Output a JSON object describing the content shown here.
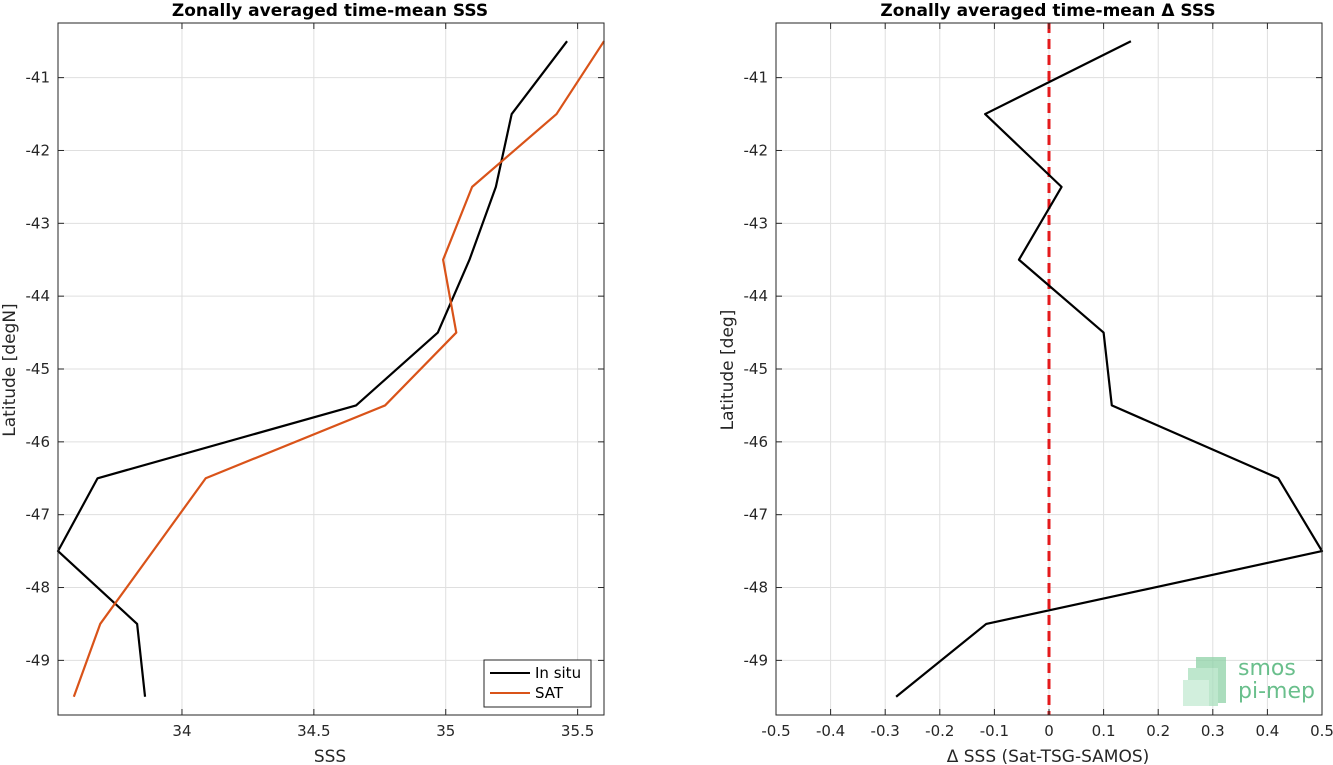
{
  "chart_data": [
    {
      "type": "line",
      "title": "Zonally averaged time-mean SSS",
      "xlabel": "SSS",
      "ylabel": "Latitude [degN]",
      "xlim": [
        33.53,
        35.6
      ],
      "ylim": [
        -49.75,
        -40.25
      ],
      "xticks": [
        34,
        34.5,
        35,
        35.5
      ],
      "xtick_labels": [
        "34",
        "34.5",
        "35",
        "35.5"
      ],
      "yticks": [
        -49,
        -48,
        -47,
        -46,
        -45,
        -44,
        -43,
        -42,
        -41
      ],
      "ytick_labels": [
        "-49",
        "-48",
        "-47",
        "-46",
        "-45",
        "-44",
        "-43",
        "-42",
        "-41"
      ],
      "grid": true,
      "legend_position": "bottom-right",
      "series": [
        {
          "name": "In situ",
          "color": "#000000",
          "x": [
            33.86,
            33.83,
            33.53,
            33.68,
            34.66,
            34.97,
            35.09,
            35.19,
            35.25,
            35.46
          ],
          "y": [
            -49.5,
            -48.5,
            -47.5,
            -46.5,
            -45.5,
            -44.5,
            -43.5,
            -42.5,
            -41.5,
            -40.5
          ]
        },
        {
          "name": "SAT",
          "color": "#d95319",
          "x": [
            33.59,
            33.69,
            33.89,
            34.09,
            34.77,
            35.04,
            34.99,
            35.1,
            35.42,
            35.6
          ],
          "y": [
            -49.5,
            -48.5,
            -47.5,
            -46.5,
            -45.5,
            -44.5,
            -43.5,
            -42.5,
            -41.5,
            -40.5
          ]
        }
      ]
    },
    {
      "type": "line",
      "title": "Zonally averaged time-mean Δ SSS",
      "xlabel": "Δ SSS (Sat-TSG-SAMOS)",
      "ylabel": "Latitude [deg]",
      "xlim": [
        -0.5,
        0.5
      ],
      "ylim": [
        -49.75,
        -40.25
      ],
      "xticks": [
        -0.5,
        -0.4,
        -0.3,
        -0.2,
        -0.1,
        0,
        0.1,
        0.2,
        0.3,
        0.4,
        0.5
      ],
      "xtick_labels": [
        "-0.5",
        "-0.4",
        "-0.3",
        "-0.2",
        "-0.1",
        "0",
        "0.1",
        "0.2",
        "0.3",
        "0.4",
        "0.5"
      ],
      "yticks": [
        -49,
        -48,
        -47,
        -46,
        -45,
        -44,
        -43,
        -42,
        -41
      ],
      "ytick_labels": [
        "-49",
        "-48",
        "-47",
        "-46",
        "-45",
        "-44",
        "-43",
        "-42",
        "-41"
      ],
      "grid": true,
      "reference_line": {
        "x": 0,
        "style": "dashed",
        "color": "#e41a1c"
      },
      "series": [
        {
          "color": "#000000",
          "x": [
            -0.28,
            -0.115,
            0.5,
            0.42,
            0.115,
            0.1,
            -0.055,
            0.023,
            -0.117,
            0.15
          ],
          "y": [
            -49.5,
            -48.5,
            -47.5,
            -46.5,
            -45.5,
            -44.5,
            -43.5,
            -42.5,
            -41.5,
            -40.5
          ]
        }
      ]
    }
  ],
  "watermark": {
    "line1": "smos",
    "line2": "pi-mep",
    "color": "#6abf8c"
  }
}
